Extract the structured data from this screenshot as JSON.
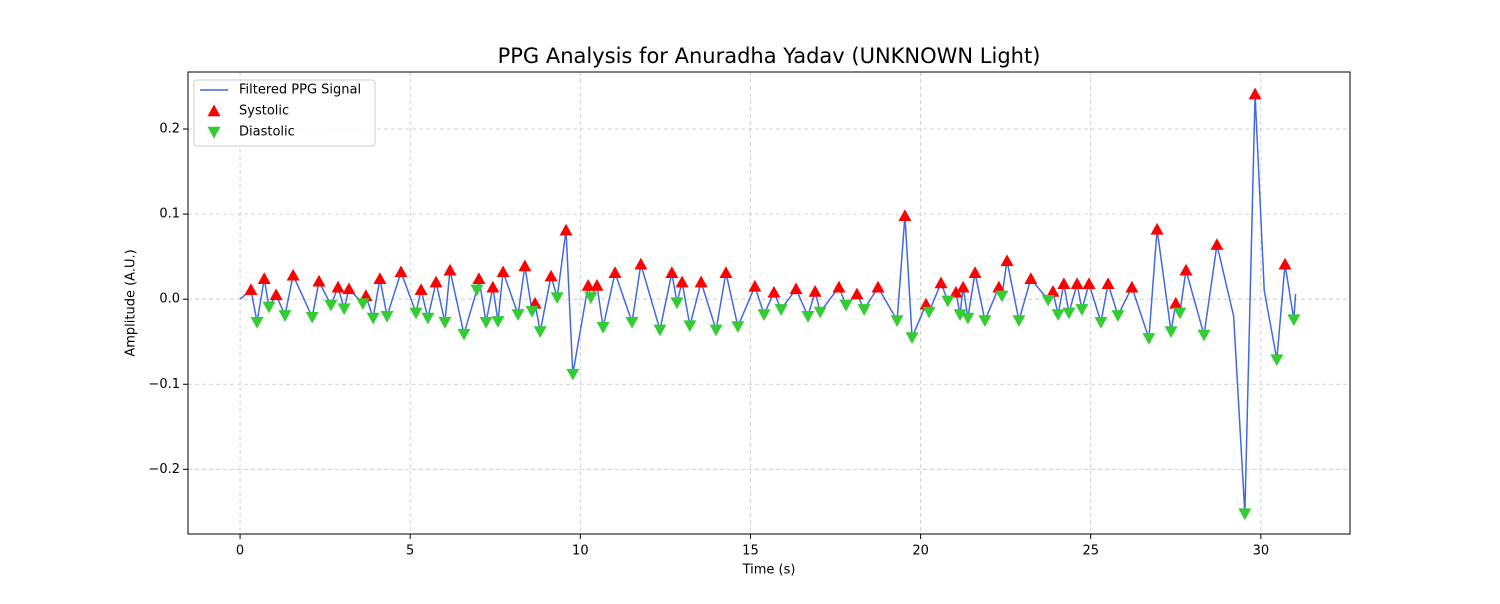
{
  "chart_data": {
    "type": "line",
    "title": "PPG Analysis for Anuradha Yadav (UNKNOWN Light)",
    "xlabel": "Time (s)",
    "ylabel": "Amplitude (A.U.)",
    "xlim": [
      -1.53,
      32.62
    ],
    "ylim": [
      -0.276,
      0.267
    ],
    "xticks": [
      0,
      5,
      10,
      15,
      20,
      25,
      30
    ],
    "yticks": [
      {
        "value": -0.2,
        "label": "−0.2"
      },
      {
        "value": -0.1,
        "label": "−0.1"
      },
      {
        "value": 0,
        "label": "0.0"
      },
      0.1,
      0.2
    ],
    "grid": true,
    "legend": "upper left",
    "series": [
      {
        "name": "Filtered PPG Signal",
        "color": "#4169e1",
        "marker": "line",
        "x": [
          0,
          0.32,
          0.5,
          0.71,
          0.85,
          1.06,
          1.32,
          1.56,
          2.12,
          2.32,
          2.67,
          2.88,
          3.06,
          3.2,
          3.61,
          3.7,
          3.91,
          4.11,
          4.32,
          4.73,
          5.17,
          5.32,
          5.52,
          5.76,
          6.02,
          6.17,
          6.58,
          6.96,
          7.02,
          7.23,
          7.43,
          7.58,
          7.73,
          8.17,
          8.37,
          8.58,
          8.67,
          8.82,
          9.14,
          9.32,
          9.58,
          9.78,
          10.23,
          10.31,
          10.49,
          10.67,
          11.02,
          11.52,
          11.78,
          12.34,
          12.69,
          12.84,
          12.99,
          13.22,
          13.55,
          13.99,
          14.28,
          14.63,
          15.13,
          15.4,
          15.69,
          15.9,
          16.34,
          16.69,
          16.9,
          17.05,
          17.6,
          17.81,
          18.13,
          18.34,
          18.75,
          19.31,
          19.54,
          19.75,
          20.16,
          20.25,
          20.6,
          20.8,
          21.04,
          21.16,
          21.25,
          21.39,
          21.6,
          21.89,
          22.3,
          22.39,
          22.54,
          22.89,
          23.24,
          23.75,
          23.89,
          24.04,
          24.21,
          24.36,
          24.6,
          24.74,
          24.95,
          25.3,
          25.51,
          25.8,
          26.21,
          26.71,
          26.95,
          27.36,
          27.5,
          27.62,
          27.8,
          28.33,
          28.71,
          29.2,
          29.53,
          29.83,
          30.1,
          30.47,
          30.71,
          30.97,
          31.02
        ],
        "values": [
          0,
          0.011,
          -0.027,
          0.024,
          -0.009,
          0.005,
          -0.019,
          0.028,
          -0.021,
          0.021,
          -0.007,
          0.014,
          -0.011,
          0.012,
          -0.005,
          0.004,
          -0.022,
          0.024,
          -0.02,
          0.032,
          -0.016,
          0.011,
          -0.022,
          0.02,
          -0.027,
          0.034,
          -0.041,
          0.011,
          0.024,
          -0.027,
          0.014,
          -0.026,
          0.032,
          -0.018,
          0.039,
          -0.014,
          -0.005,
          -0.038,
          0.027,
          0.002,
          0.081,
          -0.088,
          0.016,
          0.002,
          0.016,
          -0.033,
          0.031,
          -0.027,
          0.041,
          -0.036,
          0.031,
          -0.004,
          0.02,
          -0.031,
          0.02,
          -0.036,
          0.031,
          -0.032,
          0.015,
          -0.018,
          0.008,
          -0.012,
          0.012,
          -0.02,
          0.009,
          -0.015,
          0.014,
          -0.007,
          0.006,
          -0.012,
          0.014,
          -0.025,
          0.098,
          -0.045,
          -0.006,
          -0.015,
          0.019,
          -0.002,
          0.008,
          -0.018,
          0.014,
          -0.022,
          0.031,
          -0.025,
          0.014,
          0.004,
          0.045,
          -0.025,
          0.024,
          -0.001,
          0.009,
          -0.018,
          0.018,
          -0.016,
          0.018,
          -0.012,
          0.018,
          -0.027,
          0.018,
          -0.019,
          0.014,
          -0.046,
          0.082,
          -0.038,
          -0.005,
          -0.016,
          0.034,
          -0.042,
          0.064,
          -0.02,
          -0.252,
          0.241,
          0.01,
          -0.071,
          0.041,
          -0.024,
          0.006
        ]
      },
      {
        "name": "Systolic",
        "color": "#ff0000",
        "marker": "triangle-up",
        "x": [
          0.32,
          0.71,
          1.06,
          1.56,
          2.32,
          2.88,
          3.2,
          3.7,
          4.11,
          4.73,
          5.32,
          5.76,
          6.17,
          7.02,
          7.43,
          7.73,
          8.37,
          8.67,
          9.14,
          9.58,
          10.23,
          10.49,
          11.02,
          11.78,
          12.69,
          12.99,
          13.55,
          14.28,
          15.13,
          15.69,
          16.34,
          16.9,
          17.6,
          18.13,
          18.75,
          19.54,
          20.16,
          20.6,
          21.04,
          21.25,
          21.6,
          22.3,
          22.54,
          23.24,
          23.89,
          24.21,
          24.6,
          24.95,
          25.51,
          26.21,
          26.95,
          27.5,
          27.8,
          28.71,
          29.83,
          30.71
        ],
        "values": [
          0.011,
          0.024,
          0.005,
          0.028,
          0.021,
          0.014,
          0.012,
          0.004,
          0.024,
          0.032,
          0.011,
          0.02,
          0.034,
          0.024,
          0.014,
          0.032,
          0.039,
          -0.005,
          0.027,
          0.081,
          0.016,
          0.016,
          0.031,
          0.041,
          0.031,
          0.02,
          0.02,
          0.031,
          0.015,
          0.008,
          0.012,
          0.009,
          0.014,
          0.006,
          0.014,
          0.098,
          -0.006,
          0.019,
          0.008,
          0.014,
          0.031,
          0.014,
          0.045,
          0.024,
          0.009,
          0.018,
          0.018,
          0.018,
          0.018,
          0.014,
          0.082,
          -0.005,
          0.034,
          0.064,
          0.241,
          0.041
        ]
      },
      {
        "name": "Diastolic",
        "color": "#32cd32",
        "marker": "triangle-down",
        "x": [
          0.5,
          0.85,
          1.32,
          2.12,
          2.67,
          3.06,
          3.61,
          3.91,
          4.32,
          5.17,
          5.52,
          6.02,
          6.58,
          6.96,
          7.23,
          7.58,
          8.17,
          8.58,
          8.82,
          9.32,
          9.78,
          10.31,
          10.67,
          11.52,
          12.34,
          12.84,
          13.22,
          13.99,
          14.63,
          15.4,
          15.9,
          16.69,
          17.05,
          17.81,
          18.34,
          19.31,
          19.75,
          20.25,
          20.8,
          21.16,
          21.39,
          21.89,
          22.39,
          22.89,
          23.75,
          24.04,
          24.36,
          24.74,
          25.3,
          25.8,
          26.71,
          27.36,
          27.62,
          28.33,
          29.53,
          30.47,
          30.97
        ],
        "values": [
          -0.027,
          -0.009,
          -0.019,
          -0.021,
          -0.007,
          -0.011,
          -0.005,
          -0.022,
          -0.02,
          -0.016,
          -0.022,
          -0.027,
          -0.041,
          0.011,
          -0.027,
          -0.026,
          -0.018,
          -0.014,
          -0.038,
          0.002,
          -0.088,
          0.002,
          -0.033,
          -0.027,
          -0.036,
          -0.004,
          -0.031,
          -0.036,
          -0.032,
          -0.018,
          -0.012,
          -0.02,
          -0.015,
          -0.007,
          -0.012,
          -0.025,
          -0.045,
          -0.015,
          -0.002,
          -0.018,
          -0.022,
          -0.025,
          0.004,
          -0.025,
          -0.001,
          -0.018,
          -0.016,
          -0.012,
          -0.027,
          -0.019,
          -0.046,
          -0.038,
          -0.016,
          -0.042,
          -0.252,
          -0.071,
          -0.024
        ]
      }
    ]
  }
}
